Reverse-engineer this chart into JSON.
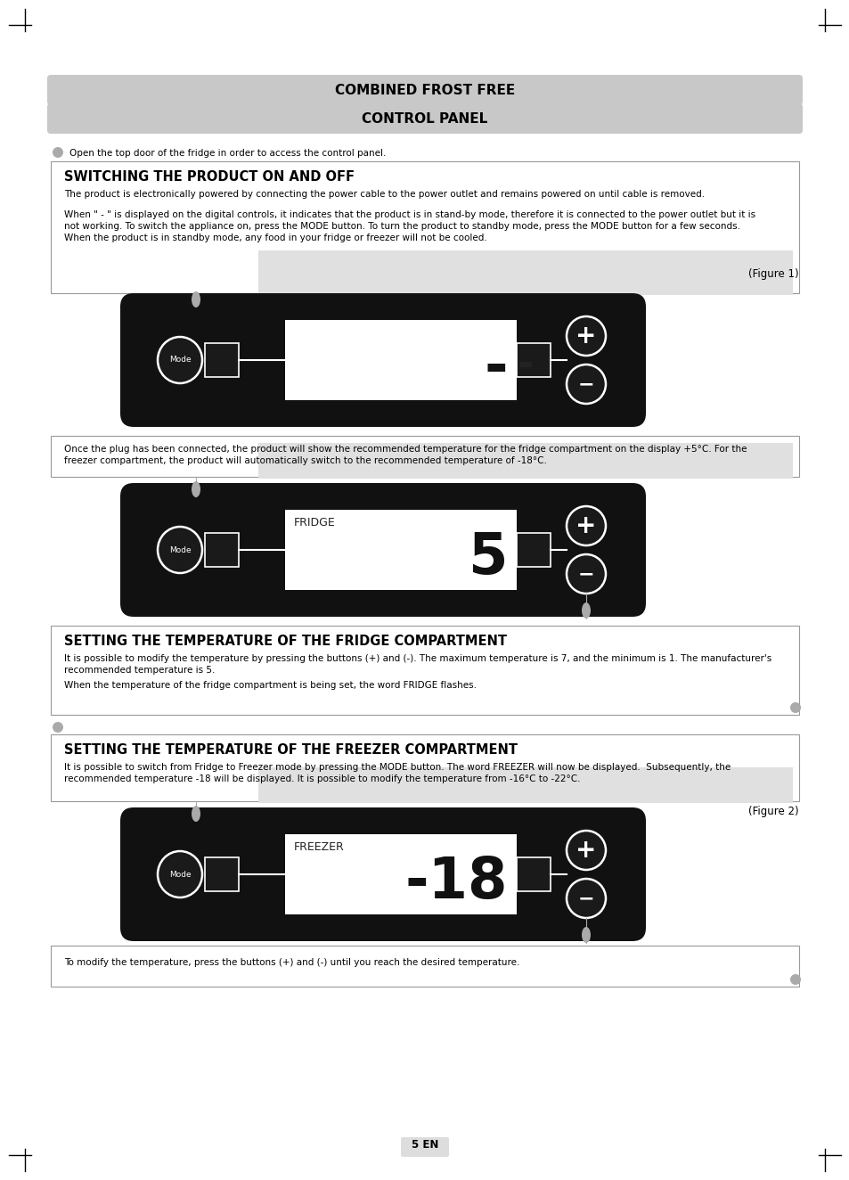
{
  "title1": "COMBINED FROST FREE",
  "title2": "CONTROL PANEL",
  "header_bg": "#c8c8c8",
  "page_bg": "#ffffff",
  "section1_title": "SWITCHING THE PRODUCT ON AND OFF",
  "section1_body1": "The product is electronically powered by connecting the power cable to the power outlet and remains powered on until cable is removed.",
  "section1_body2_line1": "When \" - \" is displayed on the digital controls, it indicates that the product is in stand-by mode, therefore it is connected to the power outlet but it is",
  "section1_body2_line2": "not working. To switch the appliance on, press the MODE button. To turn the product to standby mode, press the MODE button for a few seconds.",
  "section1_body2_line3": "When the product is in standby mode, any food in your fridge or freezer will not be cooled.",
  "fig1_label": "(Figure 1)",
  "note1": "Open the top door of the fridge in order to access the control panel.",
  "note2_line1": "Once the plug has been connected, the product will show the recommended temperature for the fridge compartment on the display +5°C. For the",
  "note2_line2": "freezer compartment, the product will automatically switch to the recommended temperature of -18°C.",
  "section2_title": "SETTING THE TEMPERATURE OF THE FRIDGE COMPARTMENT",
  "section2_body1_line1": "It is possible to modify the temperature by pressing the buttons (+) and (-). The maximum temperature is 7, and the minimum is 1. The manufacturer's",
  "section2_body1_line2": "recommended temperature is 5.",
  "section2_body2": "When the temperature of the fridge compartment is being set, the word FRIDGE flashes.",
  "section3_title": "SETTING THE TEMPERATURE OF THE FREEZER COMPARTMENT",
  "section3_body1_line1": "It is possible to switch from Fridge to Freezer mode by pressing the MODE button. The word FREEZER will now be displayed.  Subsequently, the",
  "section3_body1_line2": "recommended temperature -18 will be displayed. It is possible to modify the temperature from -16°C to -22°C.",
  "fig2_label": "(Figure 2)",
  "note3": "To modify the temperature, press the buttons (+) and (-) until you reach the desired temperature.",
  "page_number": "5 EN",
  "panel_bg": "#111111",
  "display_bg": "#ffffff",
  "bullet_color": "#aaaaaa",
  "connector_line_color": "#ffffff",
  "mode_circle_color": "#222222",
  "plus_minus_color": "#222222"
}
